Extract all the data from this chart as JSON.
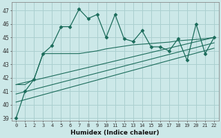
{
  "xlabel": "Humidex (Indice chaleur)",
  "background_color": "#cce8e8",
  "grid_color": "#aacfcf",
  "line_color": "#1a6b5a",
  "xlim": [
    -0.5,
    22.5
  ],
  "ylim": [
    38.8,
    47.6
  ],
  "xticks": [
    0,
    1,
    2,
    3,
    4,
    5,
    6,
    7,
    8,
    9,
    10,
    11,
    12,
    13,
    14,
    15,
    16,
    17,
    18,
    19,
    20,
    21,
    22
  ],
  "yticks": [
    39,
    40,
    41,
    42,
    43,
    44,
    45,
    46,
    47
  ],
  "main_x": [
    0,
    1,
    2,
    3,
    4,
    5,
    6,
    7,
    8,
    9,
    10,
    11,
    12,
    13,
    14,
    15,
    16,
    17,
    18,
    19,
    20,
    21,
    22
  ],
  "main_y": [
    39.0,
    41.0,
    41.9,
    43.8,
    44.4,
    45.8,
    45.8,
    47.1,
    46.4,
    46.7,
    45.0,
    46.7,
    44.9,
    44.7,
    45.5,
    44.3,
    44.3,
    44.0,
    44.9,
    43.3,
    46.0,
    43.8,
    45.0
  ],
  "trend1_x": [
    0,
    1,
    2,
    3,
    4,
    5,
    6,
    7,
    8,
    9,
    10,
    11,
    12,
    13,
    14,
    15,
    16,
    17,
    18,
    19,
    20,
    21,
    22
  ],
  "trend1_y": [
    41.5,
    41.5,
    41.9,
    43.8,
    43.8,
    43.8,
    43.8,
    43.8,
    43.9,
    44.0,
    44.15,
    44.25,
    44.35,
    44.45,
    44.5,
    44.55,
    44.6,
    44.65,
    44.75,
    44.8,
    44.85,
    44.9,
    45.0
  ],
  "trend2_x": [
    0,
    22
  ],
  "trend2_y": [
    41.5,
    45.0
  ],
  "trend3_x": [
    0,
    22
  ],
  "trend3_y": [
    40.8,
    44.6
  ],
  "trend4_x": [
    0,
    22
  ],
  "trend4_y": [
    40.2,
    44.2
  ]
}
